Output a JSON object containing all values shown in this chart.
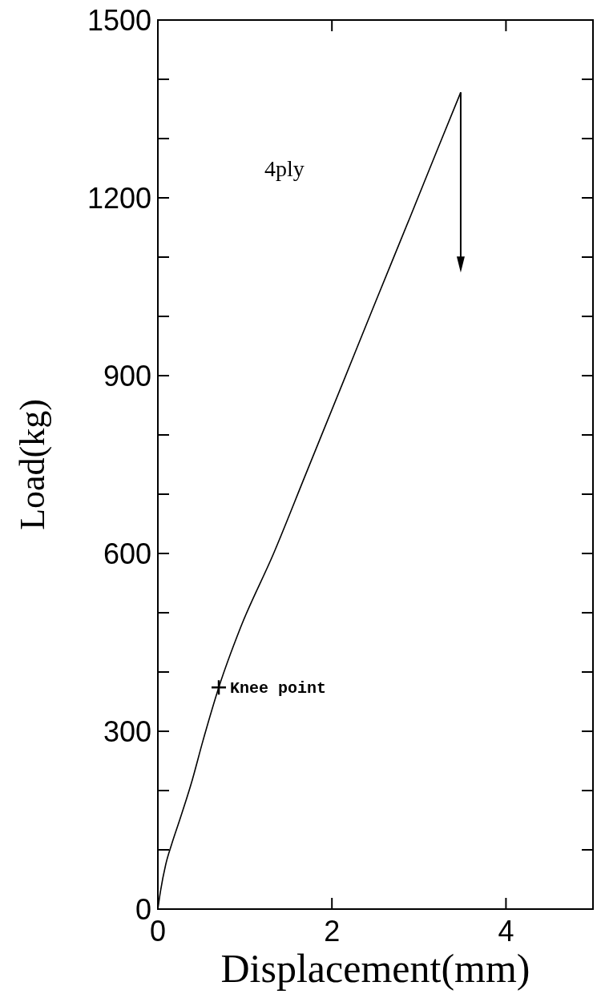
{
  "chart_data": {
    "type": "line",
    "xlabel": "Displacement(mm)",
    "ylabel": "Load(kg)",
    "xlim": [
      0,
      5
    ],
    "xticks": [
      0,
      2,
      4
    ],
    "ylim": [
      0,
      1500
    ],
    "yticks": [
      0,
      {
        "value": 100,
        "label": null
      },
      {
        "value": 200,
        "label": null
      },
      300,
      {
        "value": 400,
        "label": null
      },
      {
        "value": 500,
        "label": null
      },
      600,
      {
        "value": 700,
        "label": null
      },
      {
        "value": 800,
        "label": null
      },
      900,
      {
        "value": 1000,
        "label": null
      },
      {
        "value": 1100,
        "label": null
      },
      1200,
      {
        "value": 1300,
        "label": null
      },
      {
        "value": 1400,
        "label": null
      },
      1500
    ],
    "series": [
      {
        "color": "#000000",
        "x": [
          0,
          0.03,
          0.09,
          0.16,
          0.25,
          0.38,
          0.52,
          0.7,
          0.95,
          1.33,
          1.7,
          2.12,
          2.5,
          2.9,
          3.2,
          3.48
        ],
        "values": [
          0,
          30,
          75,
          110,
          150,
          210,
          285,
          374,
          475,
          600,
          734,
          886,
          1024,
          1168,
          1277,
          1378
        ]
      },
      {
        "type": "scatter",
        "color": "#000000",
        "marker": "cross",
        "x": [
          0.7
        ],
        "values": [
          374
        ]
      }
    ],
    "annotations": [
      "4ply",
      {
        "text": "Knee point",
        "x": 0.7,
        "y": 374
      }
    ],
    "grid": false
  }
}
